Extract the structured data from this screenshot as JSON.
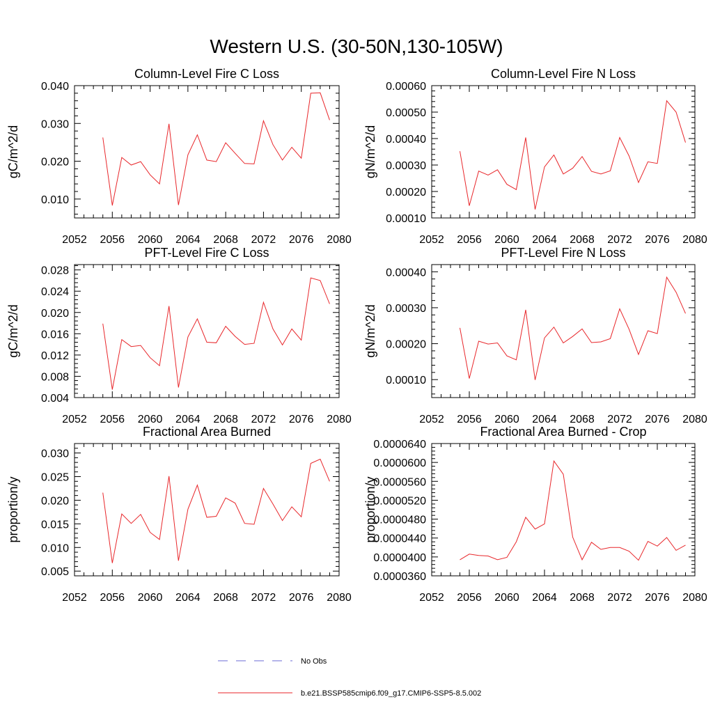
{
  "figure": {
    "title": "Western U.S. (30-50N,130-105W)",
    "legend": {
      "items": [
        {
          "label": "No Obs",
          "color": "#6b6bd6",
          "style": "dashed"
        },
        {
          "label": "b.e21.BSSP585cmip6.f09_g17.CMIP6-SSP5-8.5.002",
          "color": "#e8262a",
          "style": "solid"
        }
      ]
    }
  },
  "chart_data": [
    {
      "type": "line",
      "title": "Column-Level Fire C Loss",
      "ylabel": "gC/m^2/d",
      "xlim": [
        2052,
        2080
      ],
      "ylim": [
        0.005,
        0.04
      ],
      "xticks": [
        2052,
        2056,
        2060,
        2064,
        2068,
        2072,
        2076,
        2080
      ],
      "xticklabels": [
        "2052",
        "2056",
        "2060",
        "2064",
        "2068",
        "2072",
        "2076",
        "2080"
      ],
      "yticks": [
        0.01,
        0.02,
        0.03,
        0.04
      ],
      "yticklabels": [
        "0.010",
        "0.020",
        "0.030",
        "0.040"
      ],
      "color": "#e8262a",
      "x": [
        2055,
        2056,
        2057,
        2058,
        2059,
        2060,
        2061,
        2062,
        2063,
        2064,
        2065,
        2066,
        2067,
        2068,
        2069,
        2070,
        2071,
        2072,
        2073,
        2074,
        2075,
        2076,
        2077,
        2078,
        2079
      ],
      "y": [
        0.0263,
        0.0083,
        0.021,
        0.019,
        0.0199,
        0.0164,
        0.014,
        0.0299,
        0.0084,
        0.0217,
        0.027,
        0.0203,
        0.0199,
        0.0249,
        0.0221,
        0.0194,
        0.0193,
        0.0307,
        0.0244,
        0.0203,
        0.0237,
        0.0208,
        0.038,
        0.0381,
        0.0309
      ]
    },
    {
      "type": "line",
      "title": "Column-Level Fire N Loss",
      "ylabel": "gN/m^2/d",
      "xlim": [
        2052,
        2080
      ],
      "ylim": [
        0.0001,
        0.0006
      ],
      "xticks": [
        2052,
        2056,
        2060,
        2064,
        2068,
        2072,
        2076,
        2080
      ],
      "xticklabels": [
        "2052",
        "2056",
        "2060",
        "2064",
        "2068",
        "2072",
        "2076",
        "2080"
      ],
      "yticks": [
        0.0001,
        0.0002,
        0.0003,
        0.0004,
        0.0005,
        0.0006
      ],
      "yticklabels": [
        "0.00010",
        "0.00020",
        "0.00030",
        "0.00040",
        "0.00050",
        "0.00060"
      ],
      "color": "#e8262a",
      "x": [
        2055,
        2056,
        2057,
        2058,
        2059,
        2060,
        2061,
        2062,
        2063,
        2064,
        2065,
        2066,
        2067,
        2068,
        2069,
        2070,
        2071,
        2072,
        2073,
        2074,
        2075,
        2076,
        2077,
        2078,
        2079
      ],
      "y": [
        0.000352,
        0.000146,
        0.000277,
        0.000262,
        0.000282,
        0.000227,
        0.000207,
        0.000404,
        0.000132,
        0.000293,
        0.000338,
        0.000266,
        0.000288,
        0.000332,
        0.000276,
        0.000266,
        0.000278,
        0.000404,
        0.000334,
        0.000234,
        0.000312,
        0.000306,
        0.000543,
        0.0005,
        0.000385
      ]
    },
    {
      "type": "line",
      "title": "PFT-Level Fire C Loss",
      "ylabel": "gC/m^2/d",
      "xlim": [
        2052,
        2080
      ],
      "ylim": [
        0.004,
        0.029
      ],
      "xticks": [
        2052,
        2056,
        2060,
        2064,
        2068,
        2072,
        2076,
        2080
      ],
      "xticklabels": [
        "2052",
        "2056",
        "2060",
        "2064",
        "2068",
        "2072",
        "2076",
        "2080"
      ],
      "yticks": [
        0.004,
        0.008,
        0.012,
        0.016,
        0.02,
        0.024,
        0.028
      ],
      "yticklabels": [
        "0.004",
        "0.008",
        "0.012",
        "0.016",
        "0.020",
        "0.024",
        "0.028"
      ],
      "color": "#e8262a",
      "x": [
        2055,
        2056,
        2057,
        2058,
        2059,
        2060,
        2061,
        2062,
        2063,
        2064,
        2065,
        2066,
        2067,
        2068,
        2069,
        2070,
        2071,
        2072,
        2073,
        2074,
        2075,
        2076,
        2077,
        2078,
        2079
      ],
      "y": [
        0.0179,
        0.0055,
        0.0149,
        0.0136,
        0.0138,
        0.0115,
        0.01,
        0.0212,
        0.0059,
        0.0154,
        0.0188,
        0.0144,
        0.0143,
        0.0174,
        0.0155,
        0.014,
        0.0142,
        0.0219,
        0.0169,
        0.0139,
        0.0169,
        0.0148,
        0.0265,
        0.026,
        0.0216
      ]
    },
    {
      "type": "line",
      "title": "PFT-Level Fire N Loss",
      "ylabel": "gN/m^2/d",
      "xlim": [
        2052,
        2080
      ],
      "ylim": [
        5e-05,
        0.00042
      ],
      "xticks": [
        2052,
        2056,
        2060,
        2064,
        2068,
        2072,
        2076,
        2080
      ],
      "xticklabels": [
        "2052",
        "2056",
        "2060",
        "2064",
        "2068",
        "2072",
        "2076",
        "2080"
      ],
      "yticks": [
        0.0001,
        0.0002,
        0.0003,
        0.0004
      ],
      "yticklabels": [
        "0.00010",
        "0.00020",
        "0.00030",
        "0.00040"
      ],
      "color": "#e8262a",
      "x": [
        2055,
        2056,
        2057,
        2058,
        2059,
        2060,
        2061,
        2062,
        2063,
        2064,
        2065,
        2066,
        2067,
        2068,
        2069,
        2070,
        2071,
        2072,
        2073,
        2074,
        2075,
        2076,
        2077,
        2078,
        2079
      ],
      "y": [
        0.000244,
        0.000103,
        0.000207,
        0.000199,
        0.000202,
        0.000166,
        0.000155,
        0.000294,
        9.9e-05,
        0.000216,
        0.000246,
        0.000202,
        0.00022,
        0.000241,
        0.000203,
        0.000205,
        0.000214,
        0.000297,
        0.00024,
        0.00017,
        0.000236,
        0.000228,
        0.000385,
        0.000343,
        0.000284
      ]
    },
    {
      "type": "line",
      "title": "Fractional Area Burned",
      "ylabel": "proportion/y",
      "xlim": [
        2052,
        2080
      ],
      "ylim": [
        0.004,
        0.032
      ],
      "xticks": [
        2052,
        2056,
        2060,
        2064,
        2068,
        2072,
        2076,
        2080
      ],
      "xticklabels": [
        "2052",
        "2056",
        "2060",
        "2064",
        "2068",
        "2072",
        "2076",
        "2080"
      ],
      "yticks": [
        0.005,
        0.01,
        0.015,
        0.02,
        0.025,
        0.03
      ],
      "yticklabels": [
        "0.005",
        "0.010",
        "0.015",
        "0.020",
        "0.025",
        "0.030"
      ],
      "color": "#e8262a",
      "x": [
        2055,
        2056,
        2057,
        2058,
        2059,
        2060,
        2061,
        2062,
        2063,
        2064,
        2065,
        2066,
        2067,
        2068,
        2069,
        2070,
        2071,
        2072,
        2073,
        2074,
        2075,
        2076,
        2077,
        2078,
        2079
      ],
      "y": [
        0.0216,
        0.0067,
        0.0171,
        0.0151,
        0.017,
        0.0132,
        0.0117,
        0.0251,
        0.0072,
        0.0181,
        0.0232,
        0.0164,
        0.0166,
        0.0205,
        0.0194,
        0.0151,
        0.0149,
        0.0225,
        0.0192,
        0.0157,
        0.0186,
        0.0165,
        0.0278,
        0.0287,
        0.024
      ]
    },
    {
      "type": "line",
      "title": "Fractional Area Burned - Crop",
      "ylabel": "proportion/y",
      "xlim": [
        2052,
        2080
      ],
      "ylim": [
        3.6e-05,
        6.4e-05
      ],
      "xticks": [
        2052,
        2056,
        2060,
        2064,
        2068,
        2072,
        2076,
        2080
      ],
      "xticklabels": [
        "2052",
        "2056",
        "2060",
        "2064",
        "2068",
        "2072",
        "2076",
        "2080"
      ],
      "yticks": [
        3.6e-05,
        4e-05,
        4.4e-05,
        4.8e-05,
        5.2e-05,
        5.6e-05,
        6e-05,
        6.4e-05
      ],
      "yticklabels": [
        "0.0000360",
        "0.0000400",
        "0.0000440",
        "0.0000480",
        "0.0000520",
        "0.0000560",
        "0.0000600",
        "0.0000640"
      ],
      "color": "#e8262a",
      "x": [
        2055,
        2056,
        2057,
        2058,
        2059,
        2060,
        2061,
        2062,
        2063,
        2064,
        2065,
        2066,
        2067,
        2068,
        2069,
        2070,
        2071,
        2072,
        2073,
        2074,
        2075,
        2076,
        2077,
        2078,
        2079
      ],
      "y": [
        3.94e-05,
        4.06e-05,
        4.03e-05,
        4.02e-05,
        3.94e-05,
        3.99e-05,
        4.32e-05,
        4.84e-05,
        4.59e-05,
        4.7e-05,
        6.03e-05,
        5.75e-05,
        4.42e-05,
        3.94e-05,
        4.31e-05,
        4.16e-05,
        4.2e-05,
        4.2e-05,
        4.12e-05,
        3.93e-05,
        4.33e-05,
        4.23e-05,
        4.41e-05,
        4.14e-05,
        4.25e-05
      ]
    }
  ]
}
